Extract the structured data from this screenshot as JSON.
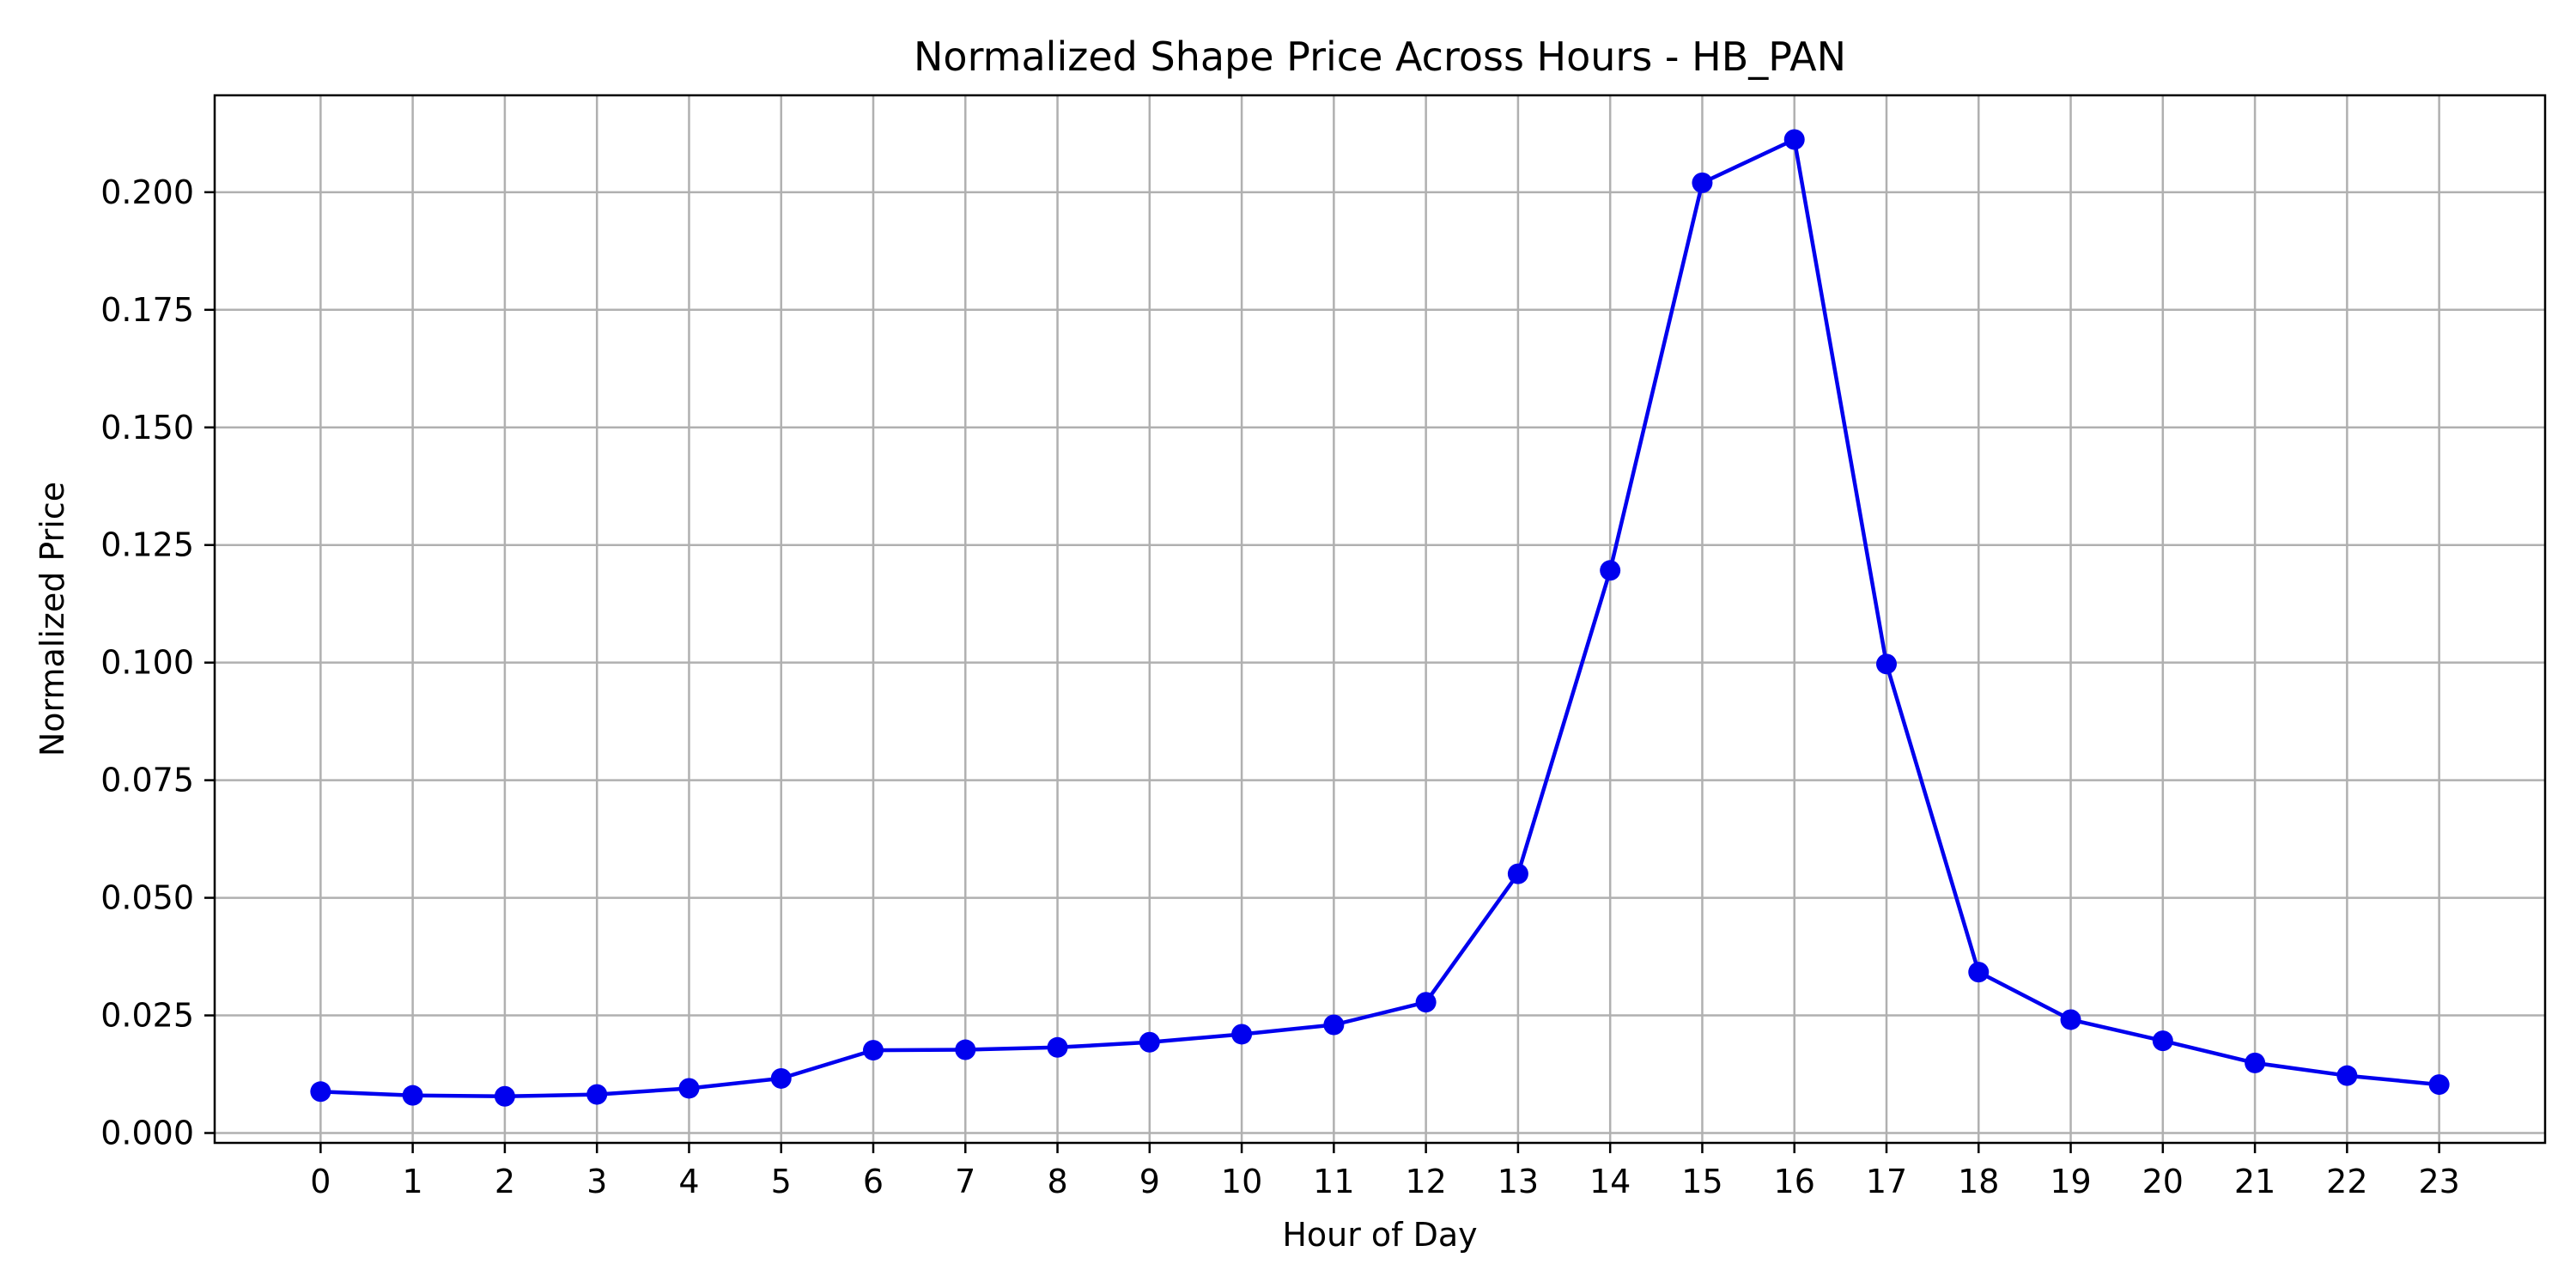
{
  "chart_data": {
    "type": "line",
    "title": "Normalized Shape Price Across Hours - HB_PAN",
    "xlabel": "Hour of Day",
    "ylabel": "Normalized Price",
    "xlim": [
      -1.15,
      24.15
    ],
    "ylim": [
      -0.0021,
      0.2206
    ],
    "grid": true,
    "x_ticks": [
      "0",
      "1",
      "2",
      "3",
      "4",
      "5",
      "6",
      "7",
      "8",
      "9",
      "10",
      "11",
      "12",
      "13",
      "14",
      "15",
      "16",
      "17",
      "18",
      "19",
      "20",
      "21",
      "22",
      "23"
    ],
    "y_ticks": [
      "0.000",
      "0.025",
      "0.050",
      "0.075",
      "0.100",
      "0.125",
      "0.150",
      "0.175",
      "0.200"
    ],
    "series": [
      {
        "color": "#0000ee",
        "marker": "circle",
        "x": [
          0,
          1,
          2,
          3,
          4,
          5,
          6,
          7,
          8,
          9,
          10,
          11,
          12,
          13,
          14,
          15,
          16,
          17,
          18,
          19,
          20,
          21,
          22,
          23
        ],
        "y": [
          0.0088,
          0.008,
          0.0078,
          0.0082,
          0.0095,
          0.0116,
          0.0176,
          0.0177,
          0.0182,
          0.0193,
          0.021,
          0.023,
          0.0278,
          0.0551,
          0.1196,
          0.202,
          0.2112,
          0.0997,
          0.0342,
          0.0241,
          0.0196,
          0.0149,
          0.0122,
          0.0103
        ]
      }
    ]
  }
}
